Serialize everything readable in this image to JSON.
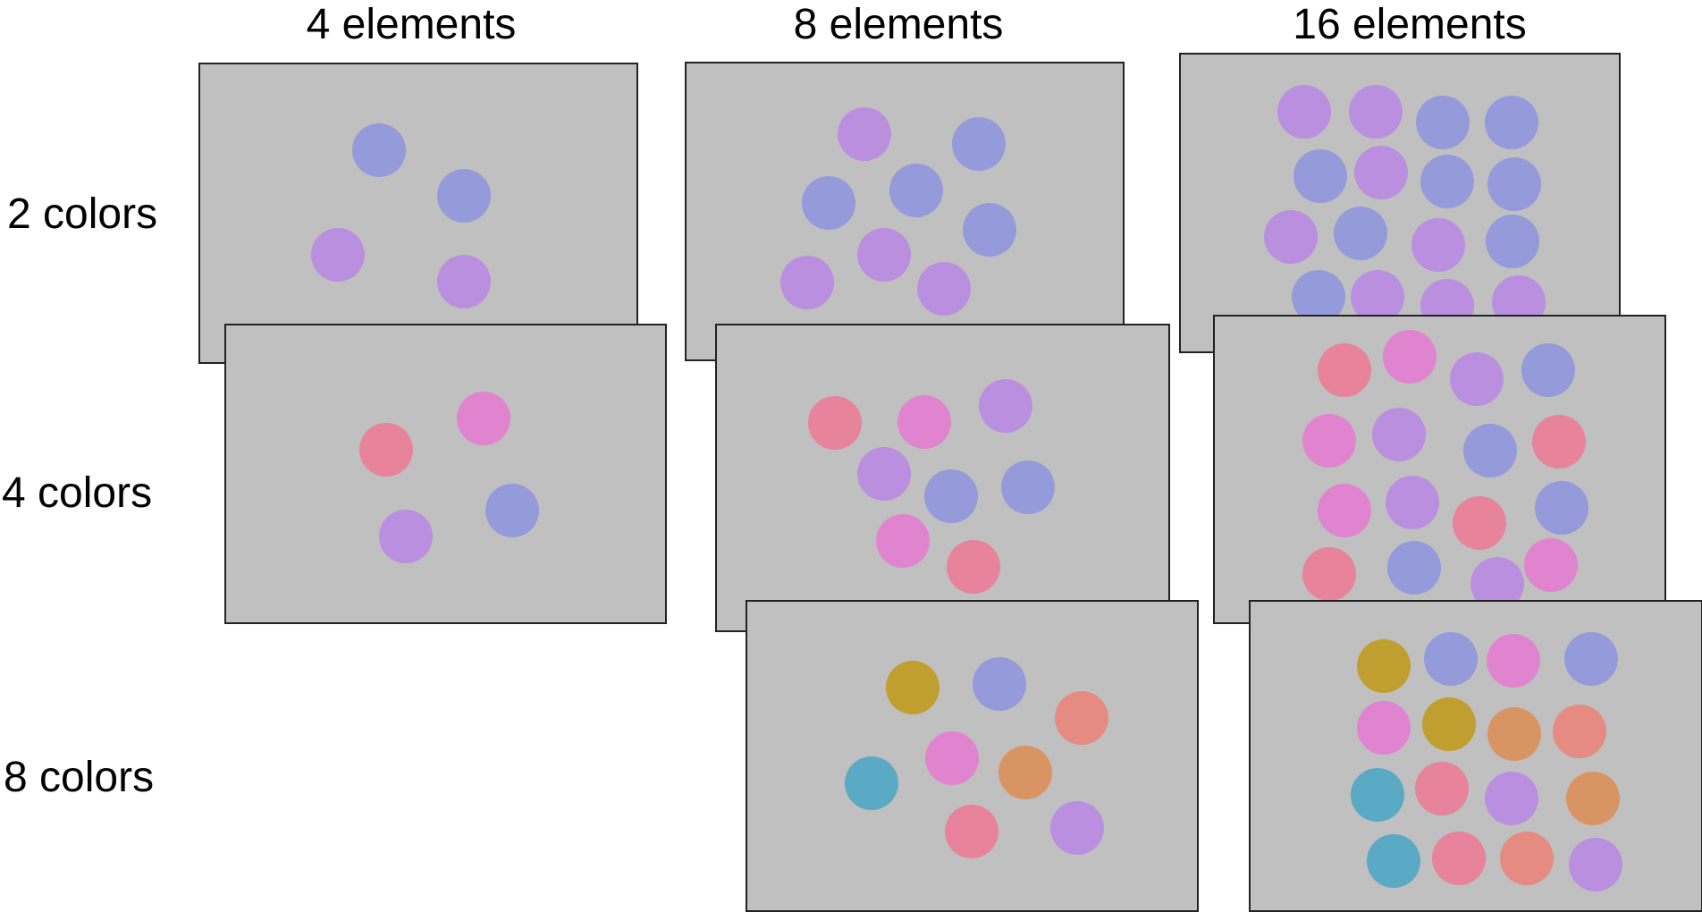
{
  "columns": [
    "4 elements",
    "8 elements",
    "16 elements"
  ],
  "rows": [
    "2 colors",
    "4 colors",
    "8 colors"
  ],
  "palette": {
    "blue": "#959ada",
    "violet": "#bb8fdf",
    "red": "#e7839a",
    "pink": "#e184d0",
    "olive": "#c09f30",
    "teal": "#5aa9c5",
    "salmon": "#e58b81",
    "orange": "#d99463"
  },
  "panels": [
    {
      "name": "panel-2colors-4elements",
      "dots": [
        "blue",
        "blue",
        "violet",
        "violet"
      ]
    },
    {
      "name": "panel-2colors-8elements",
      "dots": [
        "violet",
        "blue",
        "blue",
        "blue",
        "blue",
        "violet",
        "violet",
        "violet"
      ]
    },
    {
      "name": "panel-2colors-16elements",
      "dots": [
        "violet",
        "violet",
        "blue",
        "blue",
        "blue",
        "violet",
        "blue",
        "blue",
        "violet",
        "blue",
        "violet",
        "blue",
        "blue",
        "violet",
        "violet",
        "violet"
      ]
    },
    {
      "name": "panel-4colors-4elements",
      "dots": [
        "pink",
        "red",
        "blue",
        "violet"
      ]
    },
    {
      "name": "panel-4colors-8elements",
      "dots": [
        "red",
        "pink",
        "violet",
        "violet",
        "blue",
        "blue",
        "pink",
        "red"
      ]
    },
    {
      "name": "panel-4colors-16elements",
      "dots": [
        "red",
        "pink",
        "violet",
        "blue",
        "pink",
        "violet",
        "blue",
        "red",
        "pink",
        "violet",
        "red",
        "blue",
        "red",
        "blue",
        "violet",
        "pink"
      ]
    },
    {
      "name": "panel-8colors-8elements",
      "dots": [
        "olive",
        "blue",
        "salmon",
        "pink",
        "orange",
        "teal",
        "red",
        "violet"
      ]
    },
    {
      "name": "panel-8colors-16elements",
      "dots": [
        "olive",
        "blue",
        "pink",
        "blue",
        "pink",
        "olive",
        "orange",
        "salmon",
        "teal",
        "red",
        "violet",
        "orange",
        "teal",
        "red",
        "salmon",
        "violet"
      ]
    }
  ]
}
